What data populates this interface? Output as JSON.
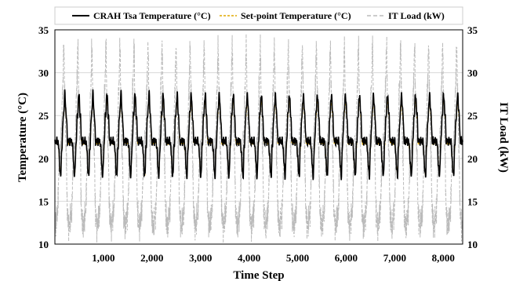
{
  "chart_data": {
    "type": "line",
    "title": "",
    "xlabel": "Time Step",
    "ylabel": "Temperature (°C)",
    "y2label": "IT Load (kW)",
    "xlim": [
      0,
      8400
    ],
    "ylim": [
      10,
      35
    ],
    "y2lim": [
      10,
      35
    ],
    "x_ticks": [
      1000,
      2000,
      3000,
      4000,
      5000,
      6000,
      7000,
      8000
    ],
    "x_tick_labels": [
      "1,000",
      "2,000",
      "3,000",
      "4,000",
      "5,000",
      "6,000",
      "7,000",
      "8,000"
    ],
    "y_ticks": [
      10,
      15,
      20,
      25,
      30,
      35
    ],
    "y2_ticks": [
      10,
      15,
      20,
      25,
      30,
      35
    ],
    "grid": true,
    "legend_position": "top",
    "cycle_period": 289,
    "series": [
      {
        "name": "CRAH Tsa Temperature (°C)",
        "color": "#000000",
        "style": "solid",
        "axis": "left",
        "x": [
          0,
          60,
          120,
          145,
          175,
          205,
          235,
          260,
          289
        ],
        "values": [
          22.0,
          22.0,
          18.0,
          21.5,
          25.0,
          27.5,
          25.0,
          22.0,
          22.0
        ]
      },
      {
        "name": "Set-point Temperature (°C)",
        "color": "#e0a800",
        "style": "dashed",
        "axis": "left",
        "x": [
          0,
          60,
          120,
          145,
          175,
          205,
          235,
          260,
          289
        ],
        "values": [
          21.8,
          21.8,
          18.2,
          21.3,
          24.8,
          26.8,
          24.8,
          21.8,
          21.8
        ]
      },
      {
        "name": "IT Load (kW)",
        "color": "#bbbbbb",
        "style": "dashed",
        "axis": "right",
        "x": [
          0,
          50,
          95,
          130,
          160,
          185,
          205,
          230,
          260,
          289
        ],
        "values": [
          12.0,
          13.5,
          20.0,
          22.0,
          28.0,
          33.0,
          27.0,
          21.0,
          13.5,
          12.0
        ]
      }
    ]
  }
}
